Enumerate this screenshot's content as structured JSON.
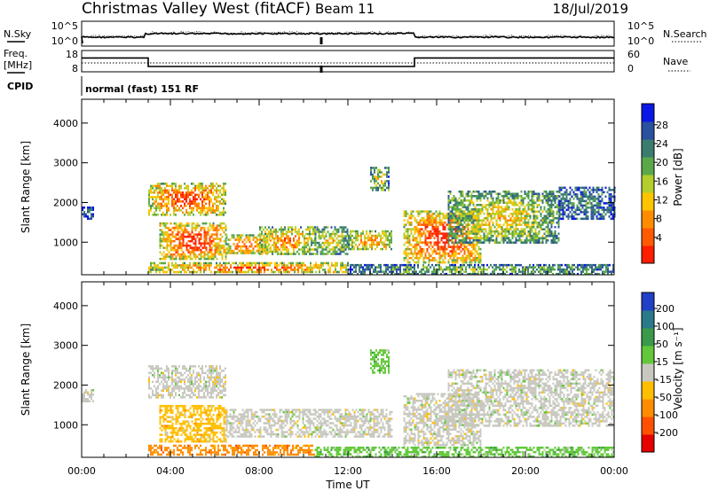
{
  "header": {
    "station": "Christmas Valley West (fitACF)",
    "beam": "Beam 11",
    "date": "18/Jul/2019"
  },
  "chart_data": [
    {
      "type": "line",
      "panel": "noise",
      "left_label": "N.Sky",
      "right_label": "N.Search",
      "left_ticks": [
        "10^5",
        "10^0"
      ],
      "right_ticks": [
        "10^5",
        "10^0"
      ]
    },
    {
      "type": "line",
      "panel": "frequency",
      "left_label_1": "Freq.",
      "left_label_2": "[MHz]",
      "right_label": "Nave",
      "left_ticks": [
        "18",
        "8"
      ],
      "right_ticks": [
        "60",
        "0"
      ],
      "x": [
        0.0,
        3.0,
        3.0,
        15.0,
        15.0,
        24.0
      ],
      "freq_mhz": [
        14.5,
        14.5,
        10.5,
        10.5,
        14.5,
        14.5
      ],
      "nave_level": 30
    },
    {
      "type": "table",
      "panel": "cpid",
      "label": "CPID",
      "value": "normal (fast) 151 RF"
    },
    {
      "type": "heatmap",
      "panel": "power",
      "ylabel": "Slant Range [km]",
      "ylim": [
        180,
        4600
      ],
      "y_ticks": [
        1000,
        2000,
        3000,
        4000
      ],
      "xlim": [
        0,
        24
      ],
      "colorbar": {
        "label": "Power [dB]",
        "ticks": [
          "4",
          "8",
          "12",
          "16",
          "20",
          "24",
          "28"
        ],
        "colors": [
          "#0b17e6",
          "#2a50a0",
          "#3a7d6e",
          "#5aa84a",
          "#b4ce2c",
          "#ffc400",
          "#ff8c00",
          "#ff5a00",
          "#ff1e00"
        ]
      },
      "regions": [
        {
          "t": [
            0.0,
            0.5
          ],
          "r": [
            1600,
            1900
          ],
          "level": 0.25
        },
        {
          "t": [
            3.0,
            6.5
          ],
          "r": [
            1700,
            2500
          ],
          "level": 0.85
        },
        {
          "t": [
            3.5,
            6.5
          ],
          "r": [
            600,
            1500
          ],
          "level": 0.9
        },
        {
          "t": [
            6.5,
            8.5
          ],
          "r": [
            700,
            1200
          ],
          "level": 0.8
        },
        {
          "t": [
            8.0,
            10.5
          ],
          "r": [
            700,
            1400
          ],
          "level": 0.7
        },
        {
          "t": [
            10.5,
            12.0
          ],
          "r": [
            700,
            1400
          ],
          "level": 0.55
        },
        {
          "t": [
            12.0,
            14.0
          ],
          "r": [
            800,
            1300
          ],
          "level": 0.7
        },
        {
          "t": [
            13.0,
            13.8
          ],
          "r": [
            2300,
            2900
          ],
          "level": 0.5
        },
        {
          "t": [
            14.5,
            18.0
          ],
          "r": [
            500,
            1800
          ],
          "level": 0.9
        },
        {
          "t": [
            16.5,
            21.5
          ],
          "r": [
            1000,
            2300
          ],
          "level": 0.55
        },
        {
          "t": [
            21.5,
            24.0
          ],
          "r": [
            1600,
            2400
          ],
          "level": 0.3
        },
        {
          "t": [
            3.0,
            12.0
          ],
          "r": [
            250,
            500
          ],
          "level": 0.8
        },
        {
          "t": [
            12.0,
            24.0
          ],
          "r": [
            200,
            450
          ],
          "level": 0.4
        }
      ]
    },
    {
      "type": "heatmap",
      "panel": "velocity",
      "ylabel": "Slant Range [km]",
      "xlabel": "Time UT",
      "ylim": [
        180,
        4600
      ],
      "y_ticks": [
        1000,
        2000,
        3000,
        4000
      ],
      "xlim": [
        0,
        24
      ],
      "x_ticks": [
        "00:00",
        "04:00",
        "08:00",
        "12:00",
        "16:00",
        "20:00",
        "00:00"
      ],
      "colorbar": {
        "label": "Velocity [m s⁻¹]",
        "ticks": [
          "200",
          "100",
          "50",
          "15",
          "-15",
          "-50",
          "-100",
          "-200"
        ],
        "colors": [
          "#2040c8",
          "#2a7a8a",
          "#3a9a4a",
          "#62c83a",
          "#c8c8c0",
          "#ffbf00",
          "#ff8c00",
          "#ff5000",
          "#e60000"
        ]
      },
      "regions": [
        {
          "t": [
            0.0,
            0.5
          ],
          "r": [
            1600,
            1900
          ],
          "class": 4
        },
        {
          "t": [
            3.0,
            6.5
          ],
          "r": [
            1700,
            2500
          ],
          "class": 4
        },
        {
          "t": [
            3.5,
            6.5
          ],
          "r": [
            600,
            1500
          ],
          "class": 5
        },
        {
          "t": [
            6.5,
            10.5
          ],
          "r": [
            700,
            1400
          ],
          "class": 4
        },
        {
          "t": [
            10.5,
            14.0
          ],
          "r": [
            700,
            1400
          ],
          "class": 4
        },
        {
          "t": [
            13.0,
            13.8
          ],
          "r": [
            2300,
            2900
          ],
          "class": 3
        },
        {
          "t": [
            14.5,
            18.0
          ],
          "r": [
            500,
            1800
          ],
          "class": 4
        },
        {
          "t": [
            16.5,
            24.0
          ],
          "r": [
            1000,
            2400
          ],
          "class": 4
        },
        {
          "t": [
            3.0,
            10.5
          ],
          "r": [
            250,
            500
          ],
          "class": 6
        },
        {
          "t": [
            10.5,
            24.0
          ],
          "r": [
            200,
            450
          ],
          "class": 3
        }
      ]
    }
  ]
}
